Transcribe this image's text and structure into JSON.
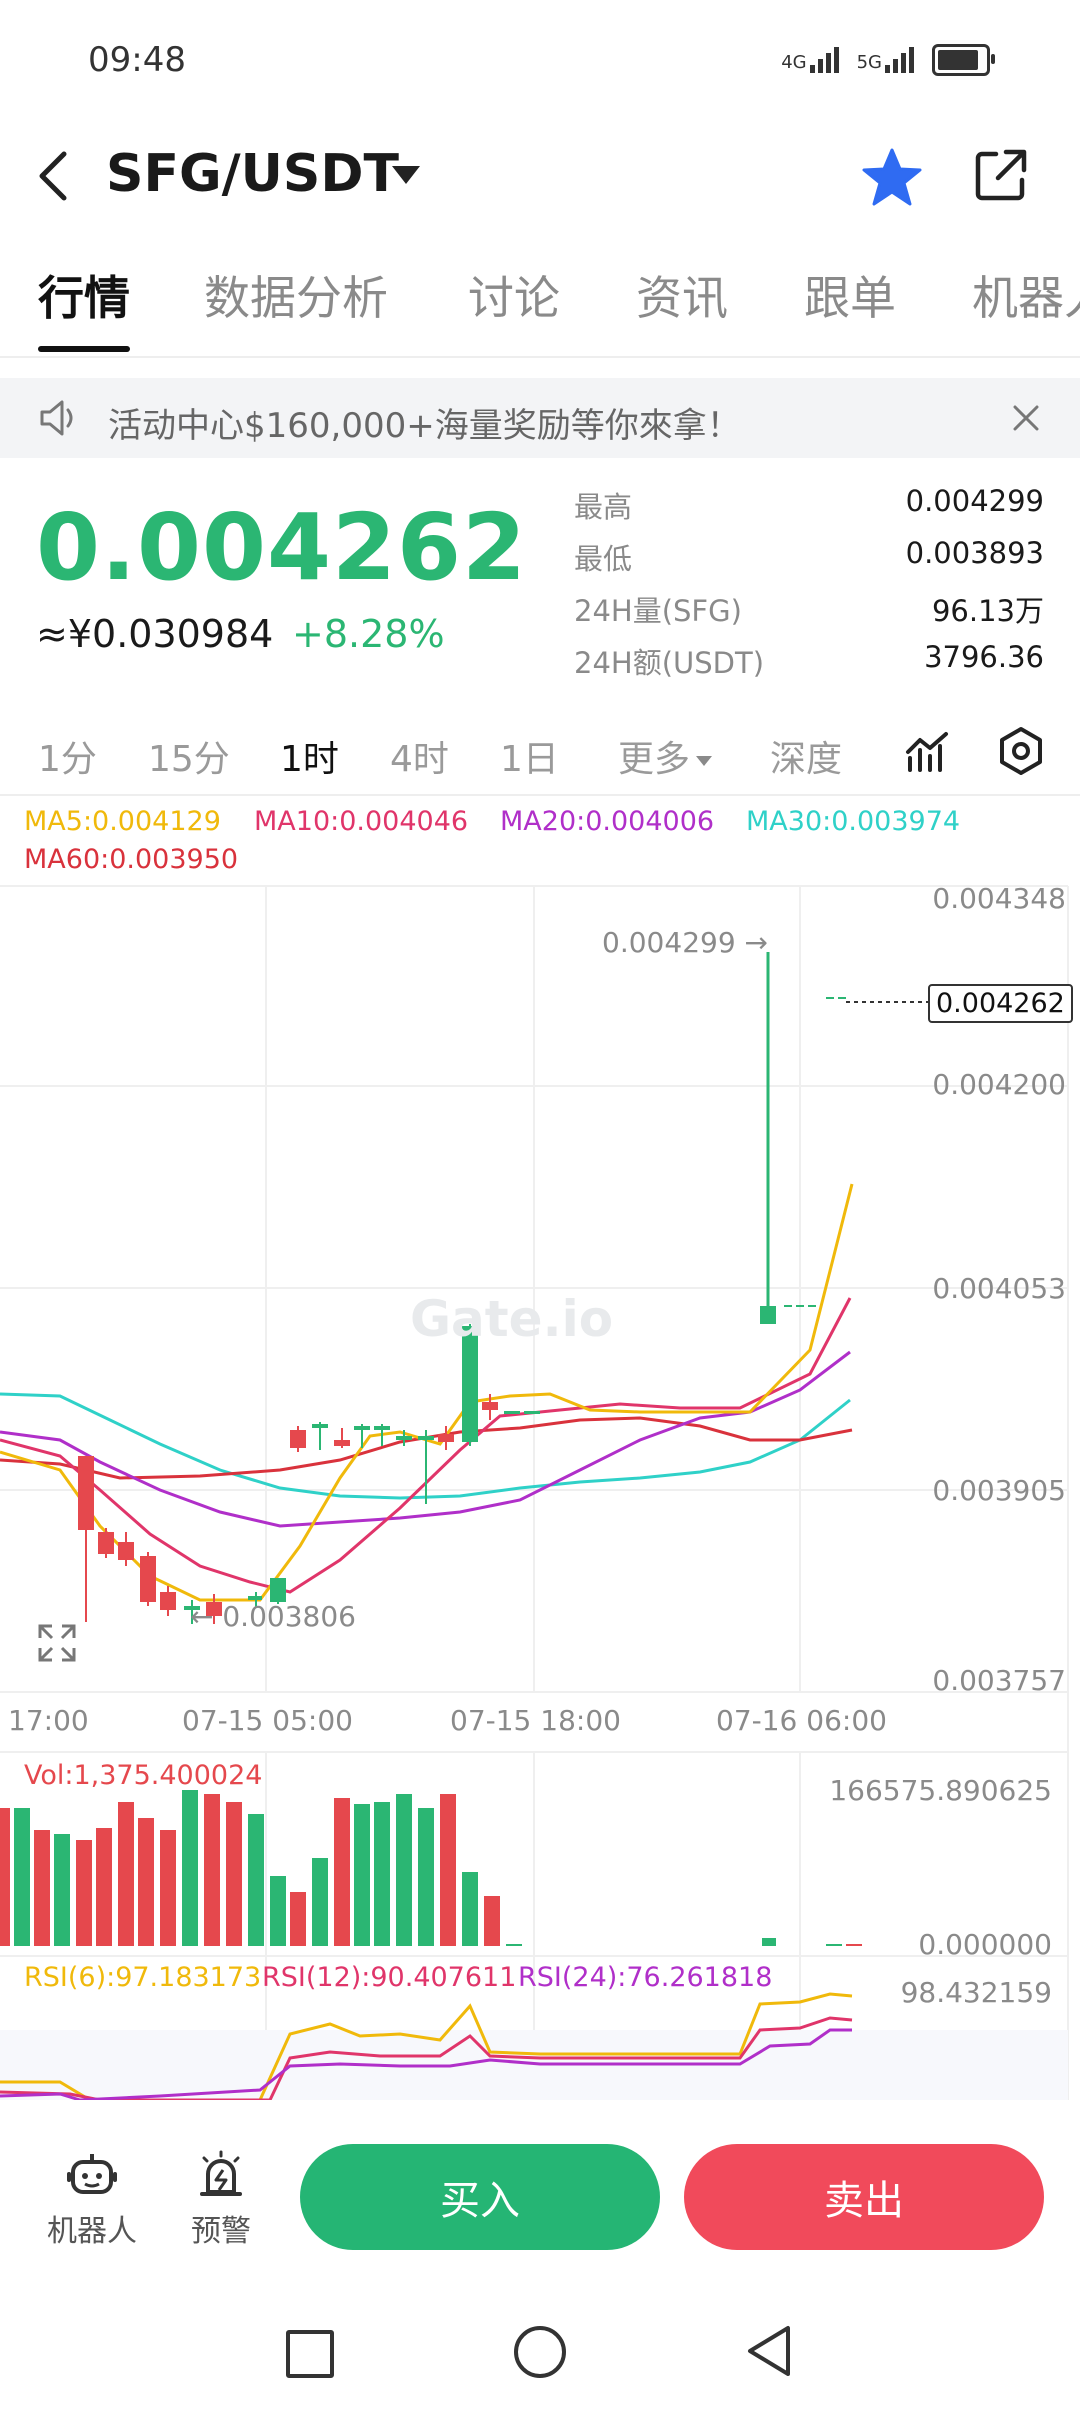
{
  "status_bar": {
    "time": "09:48",
    "net1": "4G",
    "net2": "5G"
  },
  "header": {
    "pair": "SFG/USDT"
  },
  "tabs": [
    "行情",
    "数据分析",
    "讨论",
    "资讯",
    "跟单",
    "机器人"
  ],
  "banner": {
    "text": "活动中心$160,000+海量奖励等你來拿！"
  },
  "ticker": {
    "price": "0.004262",
    "cny": "≈¥0.030984",
    "change": "+8.28%",
    "stats": [
      {
        "label": "最高",
        "value": "0.004299"
      },
      {
        "label": "最低",
        "value": "0.003893"
      },
      {
        "label": "24H量(SFG)",
        "value": "96.13万"
      },
      {
        "label": "24H额(USDT)",
        "value": "3796.36"
      }
    ]
  },
  "intervals": [
    "1分",
    "15分",
    "1时",
    "4时",
    "1日",
    "更多",
    "深度"
  ],
  "active_interval": "1时",
  "ma_legend": {
    "ma5": "MA5:0.004129",
    "ma10": "MA10:0.004046",
    "ma20": "MA20:0.004006",
    "ma30": "MA30:0.003974",
    "ma60": "MA60:0.003950"
  },
  "colors": {
    "up": "#2bb673",
    "down": "#e5484d",
    "ma5": "#f0b90b",
    "ma10": "#e0356a",
    "ma20": "#b02fc9",
    "ma30": "#2fd1c8",
    "ma60": "#d9323c"
  },
  "chart": {
    "y_ticks": [
      "0.004348",
      "0.004200",
      "0.004053",
      "0.003905",
      "0.003757"
    ],
    "high_marker": "0.004299 →",
    "low_marker": "← 0.003806",
    "current_price": "0.004262",
    "watermark": "Gate.io",
    "time_labels": [
      "17:00",
      "07-15 05:00",
      "07-15 18:00",
      "07-16 06:00"
    ]
  },
  "volume": {
    "label": "Vol:1,375.400024",
    "max": "166575.890625",
    "min": "0.000000"
  },
  "rsi": {
    "rsi6": "RSI(6):97.183173",
    "rsi12": "RSI(12):90.407611",
    "rsi24": "RSI(24):76.261818",
    "max": "98.432159"
  },
  "bottom": {
    "robot_label": "机器人",
    "alert_label": "预警",
    "buy_label": "买入",
    "sell_label": "卖出"
  }
}
